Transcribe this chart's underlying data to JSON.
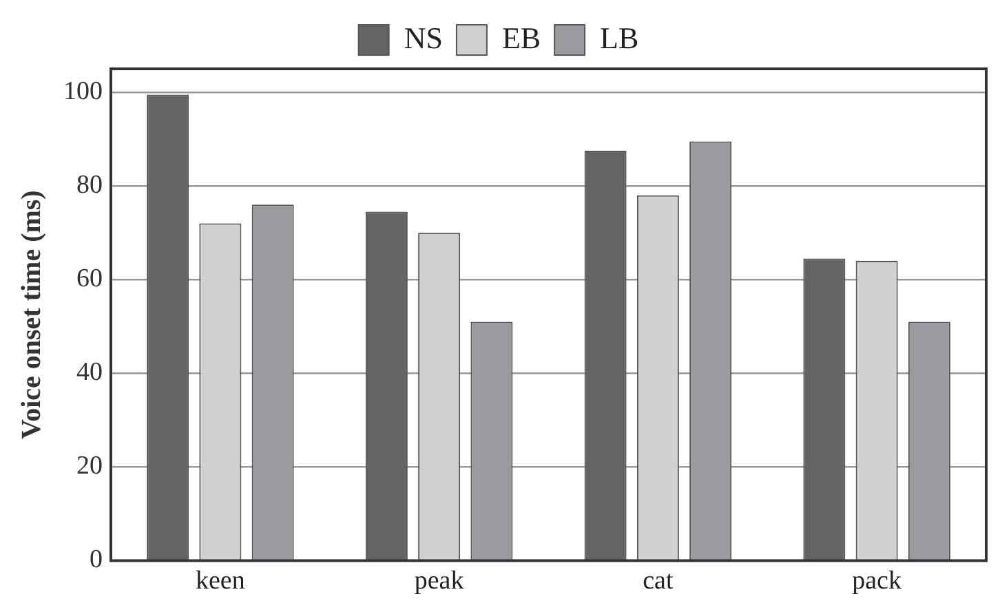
{
  "chart_data": {
    "type": "bar",
    "ylabel": "Voice onset time (ms)",
    "categories": [
      "keen",
      "peak",
      "cat",
      "pack"
    ],
    "series": [
      {
        "name": "NS",
        "color": "#636466",
        "values": [
          99.5,
          74.5,
          87.5,
          64.5
        ]
      },
      {
        "name": "EB",
        "color": "#d0d1d3",
        "values": [
          72,
          70,
          78,
          64
        ]
      },
      {
        "name": "LB",
        "color": "#999b9e",
        "values": [
          76,
          51,
          89.5,
          51
        ]
      }
    ],
    "ylim": [
      0,
      105
    ],
    "yticks": [
      0,
      20,
      40,
      60,
      80,
      100
    ],
    "grid": "y",
    "legend": "top"
  }
}
